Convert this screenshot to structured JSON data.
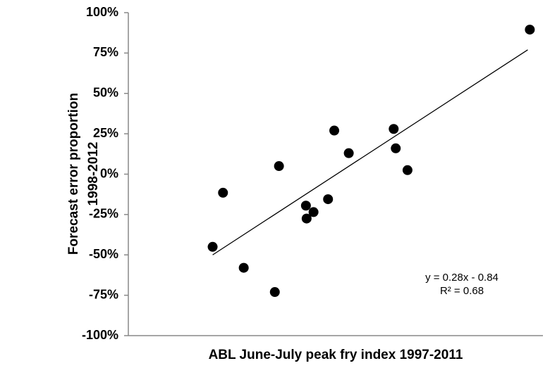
{
  "chart_data": {
    "type": "scatter",
    "x_label": "ABL June-July peak fry index 1997-2011",
    "y_label": [
      "Forecast error proportion",
      "1998-2012"
    ],
    "x": [
      1.22,
      1.37,
      1.67,
      2.12,
      2.18,
      2.57,
      2.58,
      2.68,
      2.89,
      2.98,
      3.19,
      3.84,
      3.87,
      4.04,
      5.81
    ],
    "values": [
      -45,
      -11.5,
      -58,
      -73,
      5,
      -19.5,
      -27.5,
      -23.5,
      -15.5,
      27,
      13,
      28,
      16,
      2.5,
      89.5
    ],
    "color": "#000000",
    "trendline": {
      "x": [
        1.22,
        5.78
      ],
      "y": [
        -50,
        77
      ],
      "color": "#000000"
    },
    "annotations": [
      "y = 0.28x - 0.84",
      "R² = 0.68"
    ],
    "xlim": [
      0,
      6
    ],
    "ylim": [
      -100,
      100
    ],
    "yticks": [
      {
        "value": -100,
        "label": "-100%"
      },
      {
        "value": -75,
        "label": "-75%"
      },
      {
        "value": -50,
        "label": "-50%"
      },
      {
        "value": -25,
        "label": "-25%"
      },
      {
        "value": 0,
        "label": "0%"
      },
      {
        "value": 25,
        "label": "25%"
      },
      {
        "value": 50,
        "label": "50%"
      },
      {
        "value": 75,
        "label": "75%"
      },
      {
        "value": 100,
        "label": "100%"
      }
    ],
    "grid": false
  }
}
